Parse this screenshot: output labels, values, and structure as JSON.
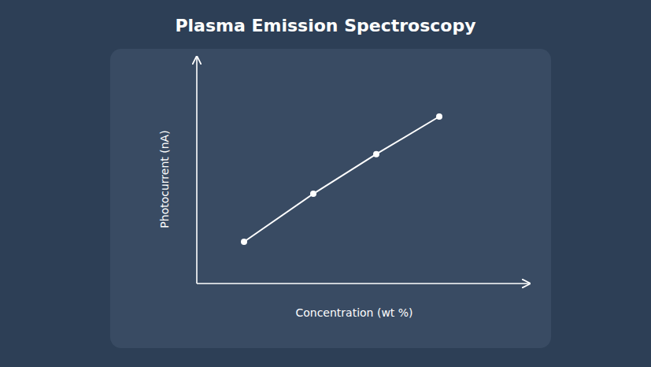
{
  "chart_data": {
    "type": "line",
    "title": "Plasma Emission Spectroscopy",
    "x_label": "Concentration (wt %)",
    "y_label": "Photocurrent (nA)",
    "x": [
      0.15,
      0.37,
      0.57,
      0.77
    ],
    "values": [
      0.2,
      0.43,
      0.62,
      0.8
    ],
    "color": "#ffffff",
    "marker": "circle",
    "xlim": [
      0,
      1
    ],
    "ylim": [
      0,
      1
    ],
    "tick_labels": false,
    "grid": false
  }
}
